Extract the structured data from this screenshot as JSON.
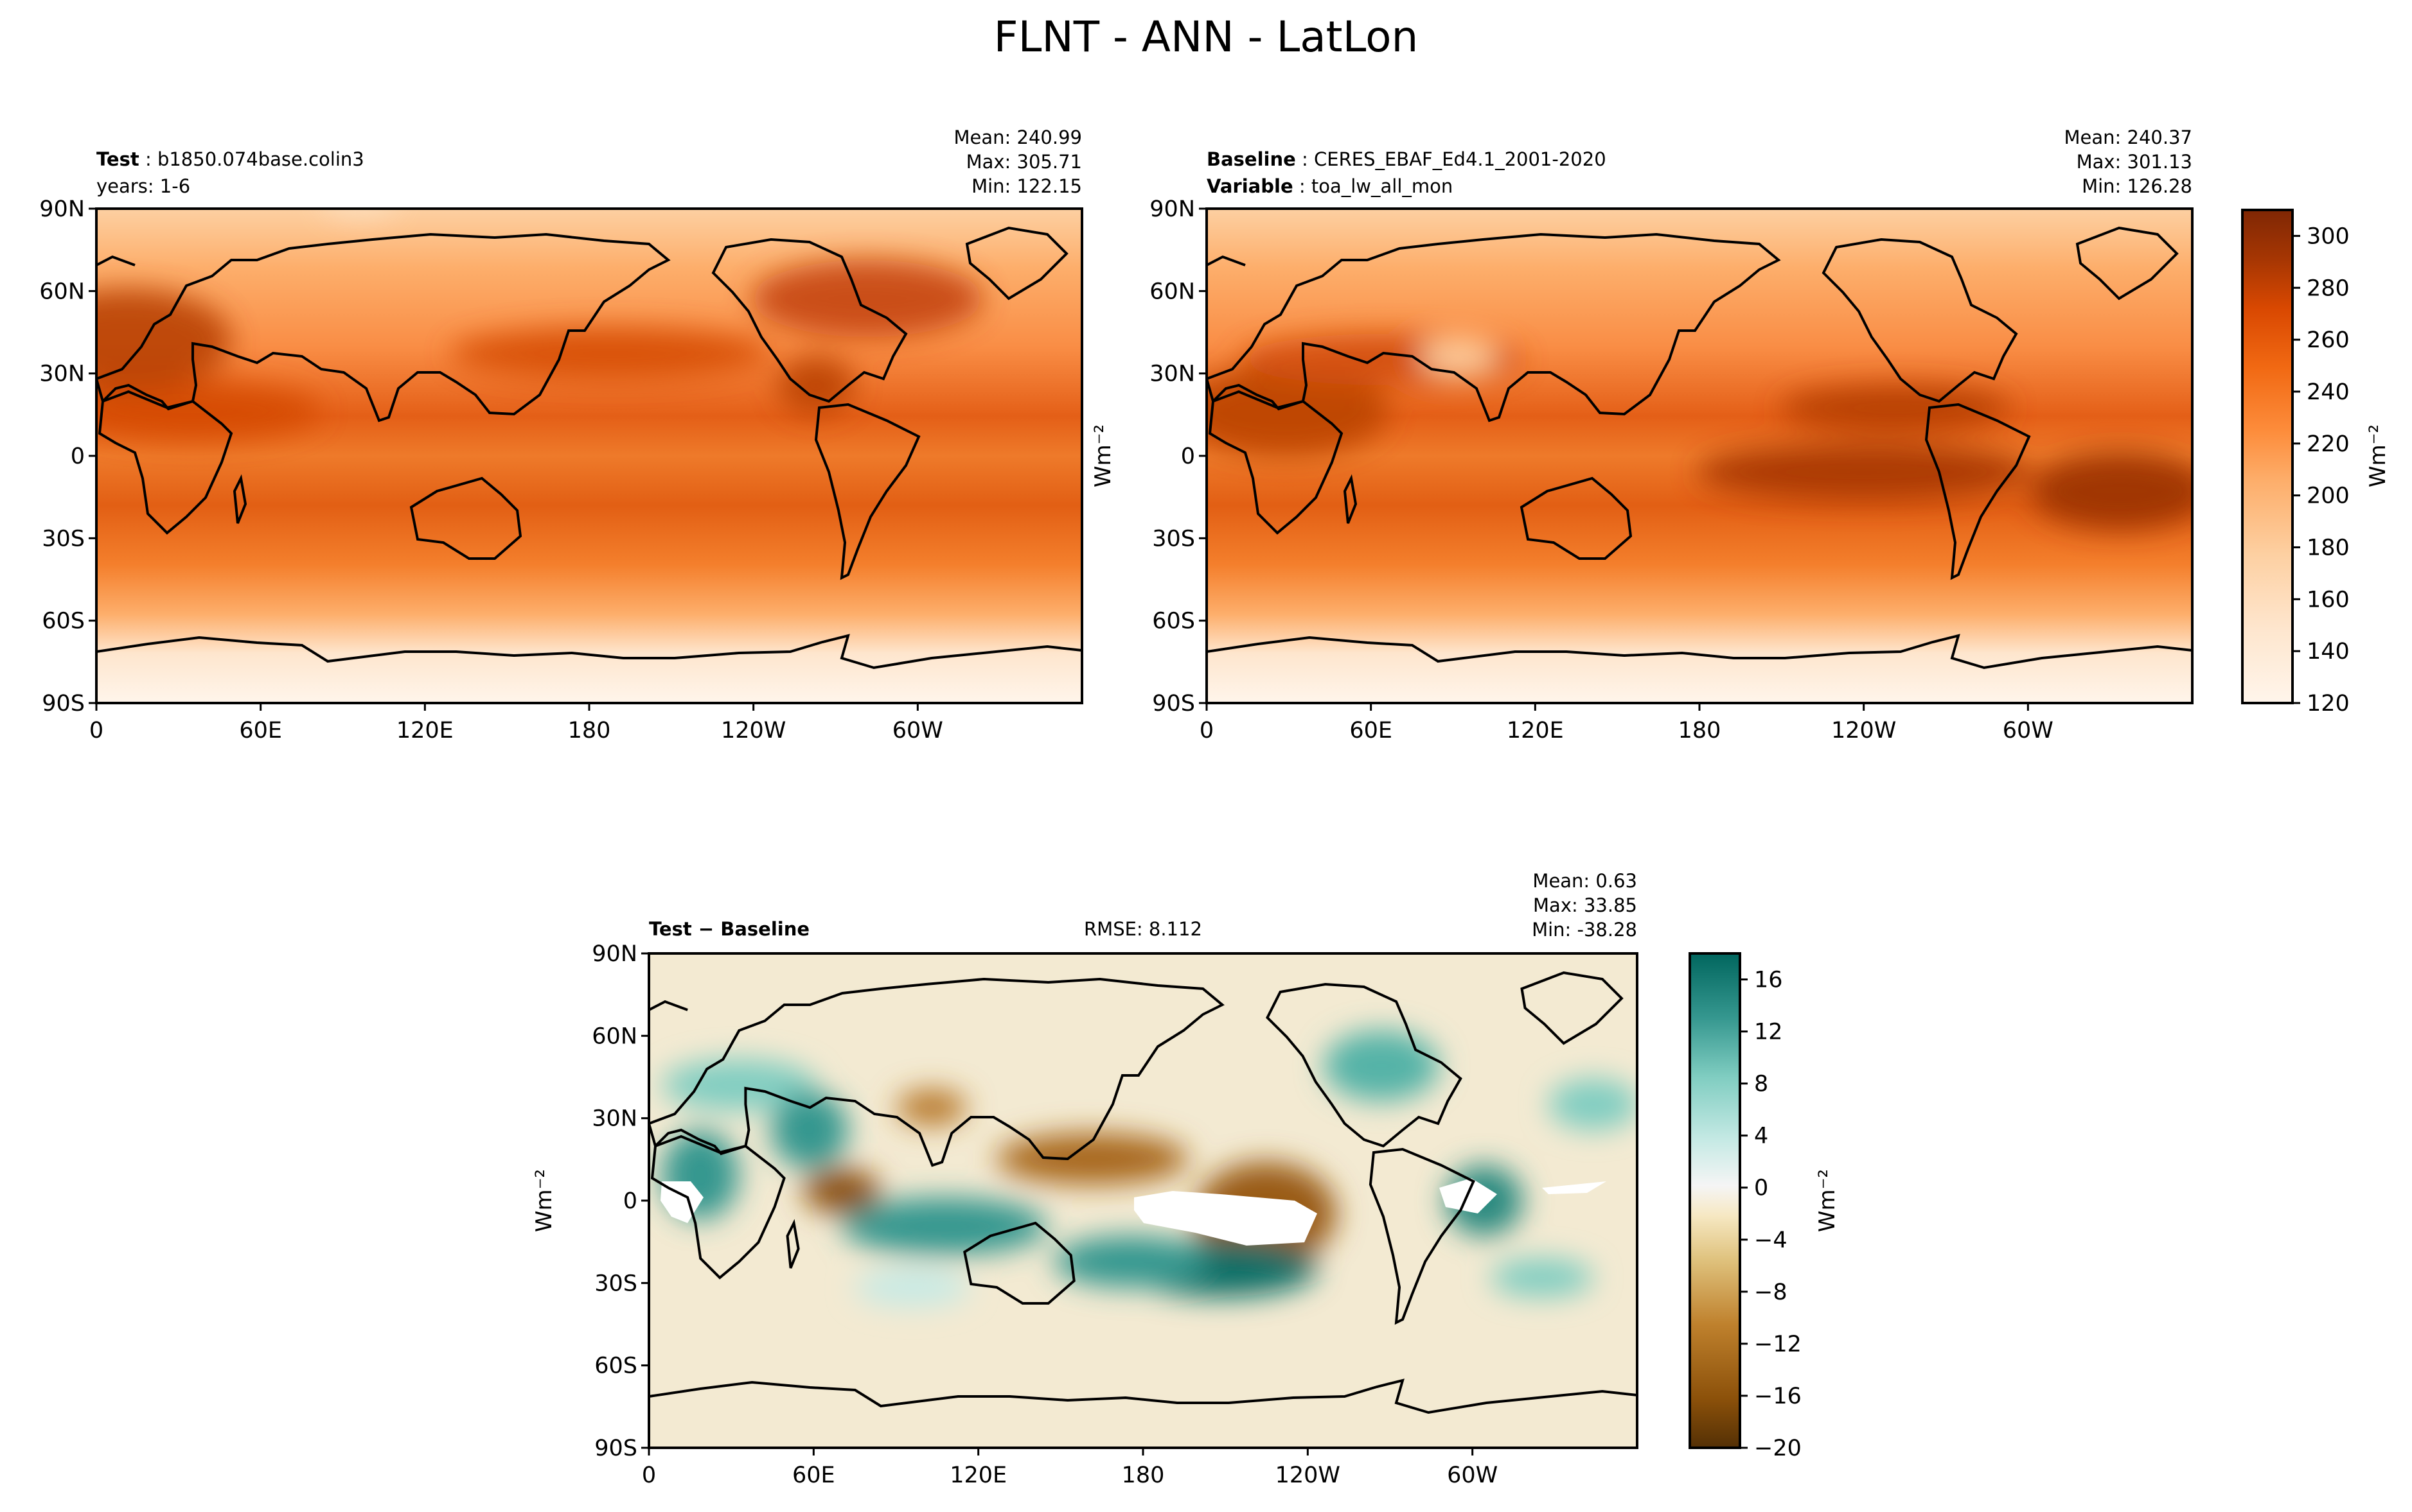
{
  "title": "FLNT - ANN - LatLon",
  "colors": {
    "test_baseline_ramp": [
      "#fff5eb",
      "#fee6ce",
      "#fdd0a2",
      "#fdae6b",
      "#fd8d3c",
      "#f16913",
      "#d94801",
      "#a63603",
      "#7f2704"
    ],
    "diff_ramp": [
      "#543005",
      "#8c510a",
      "#bf812d",
      "#dfc27d",
      "#f6e8c3",
      "#f5f5f5",
      "#c7eae5",
      "#80cdc1",
      "#35978f",
      "#01665e",
      "#003c30"
    ],
    "coastline": "#000000"
  },
  "panels": {
    "test": {
      "label_bold": "Test",
      "label_value": "b1850.074base.colin3",
      "line2": "years: 1-6",
      "mean": "Mean: 240.99",
      "max": "Max: 305.71",
      "min": "Min: 122.15"
    },
    "baseline": {
      "label_bold": "Baseline",
      "label_value": "CERES_EBAF_Ed4.1_2001-2020",
      "label2_bold": "Variable",
      "label2_value": "toa_lw_all_mon",
      "mean": "Mean: 240.37",
      "max": "Max: 301.13",
      "min": "Min: 126.28"
    },
    "diff": {
      "label": "Test − Baseline",
      "rmse": "RMSE: 8.112",
      "mean": "Mean:  0.63",
      "max": "Max: 33.85",
      "min": "Min: -38.28"
    }
  },
  "axes": {
    "lat_ticks": [
      "90N",
      "60N",
      "30N",
      "0",
      "30S",
      "60S",
      "90S"
    ],
    "lon_ticks": [
      "0",
      "60E",
      "120E",
      "180",
      "120W",
      "60W"
    ],
    "unit_label": "Wm⁻²"
  },
  "chart_data": [
    {
      "type": "heatmap",
      "name": "test",
      "x_range": [
        0,
        360
      ],
      "y_range": [
        -90,
        90
      ],
      "colorbar": {
        "range": [
          120,
          310
        ],
        "ticks": [
          "120",
          "140",
          "160",
          "180",
          "200",
          "220",
          "240",
          "260",
          "280",
          "300"
        ]
      }
    },
    {
      "type": "heatmap",
      "name": "baseline",
      "x_range": [
        0,
        360
      ],
      "y_range": [
        -90,
        90
      ],
      "colorbar": {
        "range": [
          120,
          310
        ],
        "ticks": [
          "120",
          "140",
          "160",
          "180",
          "200",
          "220",
          "240",
          "260",
          "280",
          "300"
        ]
      }
    },
    {
      "type": "heatmap",
      "name": "diff",
      "x_range": [
        0,
        360
      ],
      "y_range": [
        -90,
        90
      ],
      "colorbar": {
        "range": [
          -20,
          18
        ],
        "ticks": [
          "16",
          "12",
          "8",
          "4",
          "0",
          "−4",
          "−8",
          "−12",
          "−16",
          "−20"
        ]
      }
    }
  ]
}
